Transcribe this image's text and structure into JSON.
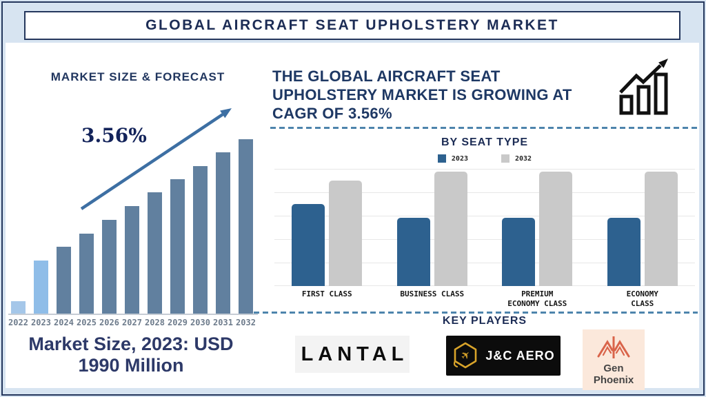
{
  "title": "GLOBAL AIRCRAFT SEAT UPHOLSTERY MARKET",
  "left_panel": {
    "heading": "MARKET SIZE & FORECAST",
    "cagr_label": "3.56%",
    "market_size_note": "Market Size, 2023: USD\n1990 Million"
  },
  "right_panel": {
    "growth_statement": "THE GLOBAL AIRCRAFT SEAT\nUPHOLSTERY MARKET IS GROWING AT\nCAGR OF 3.56%",
    "seat_chart_heading": "BY SEAT TYPE",
    "key_players_heading": "KEY PLAYERS",
    "key_players": [
      {
        "name": "LANTAL"
      },
      {
        "name": "J&C AERO"
      },
      {
        "name": "Gen\nPhoenix"
      }
    ]
  },
  "colors": {
    "navy_text": "#1c2c55",
    "page_frame": "#d7e4f1",
    "dashed_rule": "#4d84ac",
    "trend_arrow": "#3d6fa3",
    "bar_2023_seat": "#2d618f",
    "bar_2032_seat": "#c9c9c9"
  },
  "chart_data": [
    {
      "type": "bar",
      "title": "MARKET SIZE & FORECAST",
      "categories": [
        "2022",
        "2023",
        "2024",
        "2025",
        "2026",
        "2027",
        "2028",
        "2029",
        "2030",
        "2031",
        "2032"
      ],
      "values": [
        18,
        77,
        97,
        116,
        136,
        156,
        176,
        195,
        214,
        234,
        253
      ],
      "values_note": "relative bar heights in px; no value axis shown in source",
      "colors": [
        "#a5c7e9",
        "#8fbde8",
        "#61809f",
        "#61809f",
        "#61809f",
        "#61809f",
        "#61809f",
        "#61809f",
        "#61809f",
        "#61809f",
        "#61809f"
      ],
      "annotations": [
        "3.56%",
        "Market Size, 2023: USD 1990 Million"
      ],
      "xlabel": "",
      "ylabel": "",
      "grid": false,
      "legend_position": "none"
    },
    {
      "type": "bar",
      "title": "BY SEAT TYPE",
      "categories": [
        "FIRST CLASS",
        "BUSINESS CLASS",
        "PREMIUM\nECONOMY CLASS",
        "ECONOMY\nCLASS"
      ],
      "series": [
        {
          "name": "2023",
          "color": "#2d618f",
          "values": [
            119,
            99,
            99,
            99
          ]
        },
        {
          "name": "2032",
          "color": "#c9c9c9",
          "values": [
            153,
            166,
            166,
            166
          ]
        }
      ],
      "values_note": "relative bar heights in px; no value axis shown in source",
      "xlabel": "",
      "ylabel": "",
      "grid": true,
      "legend_position": "top"
    }
  ]
}
